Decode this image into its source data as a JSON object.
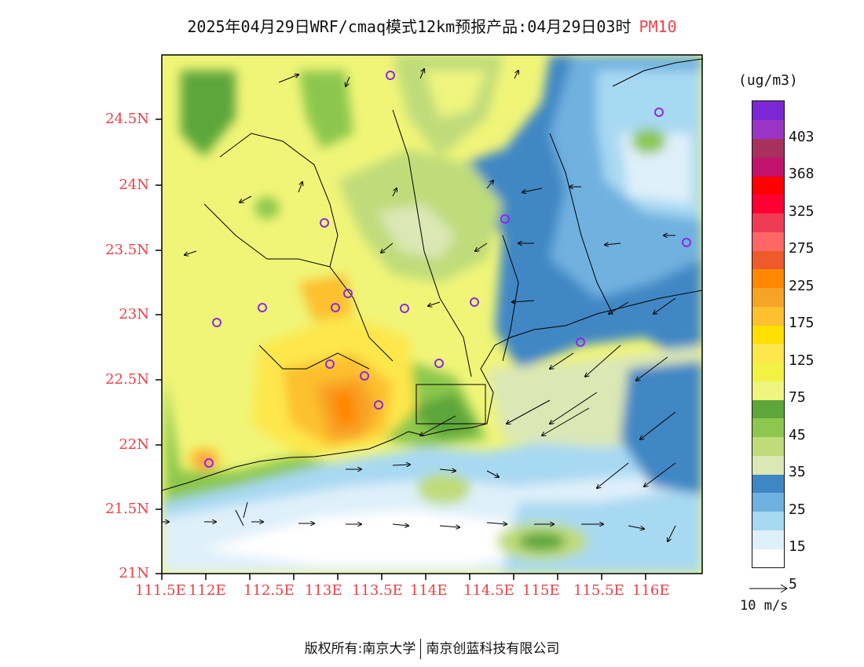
{
  "header": {
    "title": "2025年04月29日WRF/cmaq模式12km预报产品:04月29日03时",
    "pollutant": "PM10"
  },
  "axes": {
    "lat_labels": [
      "24.5N",
      "24N",
      "23.5N",
      "23N",
      "22.5N",
      "22N",
      "21.5N",
      "21N"
    ],
    "lon_labels": [
      "111.5E",
      "112E",
      "112.5E",
      "113E",
      "113.5E",
      "114E",
      "114.5E",
      "115E",
      "115.5E",
      "116E"
    ]
  },
  "colorbar": {
    "units": "(ug/m3)",
    "labels": [
      "403",
      "368",
      "325",
      "275",
      "225",
      "175",
      "125",
      "75",
      "45",
      "35",
      "25",
      "15",
      "5"
    ],
    "colors": [
      "#ffffff",
      "#dff0fa",
      "#a8d9f2",
      "#6fb1e0",
      "#3f87c4",
      "#dbe8b5",
      "#bfdc7a",
      "#8cc74e",
      "#5da63a",
      "#eff57e",
      "#f2f244",
      "#fde74c",
      "#ffe000",
      "#fdc02f",
      "#f7a327",
      "#ff8800",
      "#ee5a2b",
      "#ff6666",
      "#f03b54",
      "#ff0033",
      "#ff0000",
      "#c2126e",
      "#a8305d",
      "#9a34c7",
      "#7b28d4"
    ]
  },
  "wind_legend": {
    "label": "10 m/s"
  },
  "footer": {
    "left": "版权所有:南京大学",
    "right": "南京创蓝科技有限公司"
  }
}
